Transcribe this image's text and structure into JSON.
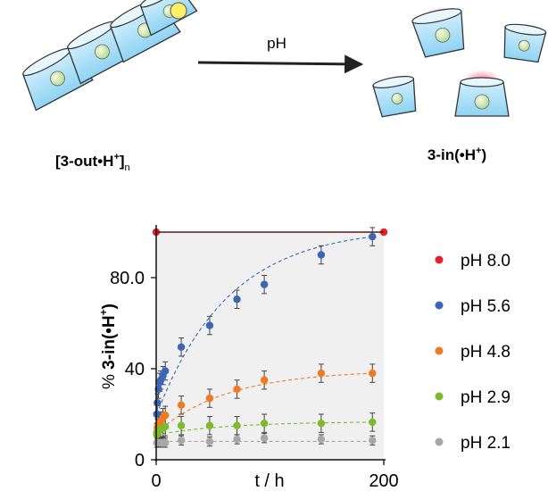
{
  "scheme": {
    "left_label_main": "[3-out•H",
    "left_label_sup": "+",
    "left_label_close": "]",
    "left_label_sub": "n",
    "arrow_label": "pH",
    "right_label_main": "3-in(•H",
    "right_label_sup": "+",
    "right_label_close": ")"
  },
  "chart_data": {
    "type": "scatter",
    "title": "",
    "xlabel": "t / h",
    "ylabel_prefix": "% ",
    "ylabel_bold": "3-in(•H",
    "ylabel_sup": "+",
    "ylabel_close": ")",
    "xlim": [
      0,
      200
    ],
    "ylim": [
      0,
      100
    ],
    "xticks": [
      0,
      200
    ],
    "yticks": [
      0,
      40,
      80
    ],
    "xtick_labels": [
      "0",
      "200"
    ],
    "ytick_labels": [
      "0",
      "40",
      "80.0"
    ],
    "grid": false,
    "legend_position": "right",
    "series": [
      {
        "name": "pH 8.0",
        "color": "#e8202a",
        "x": [
          0,
          200
        ],
        "y": [
          100,
          100
        ],
        "err": [
          0,
          0
        ],
        "fit": "flat"
      },
      {
        "name": "pH 5.6",
        "color": "#3a66b5",
        "x": [
          0.5,
          1,
          2,
          3,
          4,
          6,
          8,
          22,
          47,
          71,
          95,
          145,
          190
        ],
        "y": [
          20,
          25,
          31,
          34,
          35,
          37,
          39,
          49.5,
          59,
          70.5,
          77,
          90,
          98
        ],
        "err": [
          4,
          4,
          4,
          4,
          4,
          4,
          4,
          4,
          4,
          4,
          4,
          4,
          4
        ],
        "fit": "exp"
      },
      {
        "name": "pH 4.8",
        "color": "#f07a22",
        "x": [
          0.5,
          1,
          2,
          3,
          4,
          6,
          8,
          22,
          47,
          71,
          95,
          145,
          190
        ],
        "y": [
          12,
          14,
          15,
          16,
          17,
          18.5,
          19.5,
          24,
          27,
          31,
          35,
          38,
          38
        ],
        "err": [
          4,
          4,
          4,
          4,
          4,
          4,
          4,
          4,
          4,
          4,
          4,
          4,
          4
        ],
        "fit": "exp"
      },
      {
        "name": "pH 2.9",
        "color": "#7dbb2a",
        "x": [
          0.5,
          1,
          2,
          3,
          4,
          6,
          8,
          22,
          47,
          71,
          95,
          145,
          190
        ],
        "y": [
          11,
          12,
          12.5,
          13,
          13.5,
          14,
          14.5,
          15,
          15,
          15,
          16,
          16,
          16.5
        ],
        "err": [
          4,
          4,
          4,
          4,
          4,
          4,
          4,
          4,
          4,
          4,
          4,
          4,
          4
        ],
        "fit": "exp"
      },
      {
        "name": "pH 2.1",
        "color": "#a7a7a7",
        "x": [
          0.5,
          1,
          2,
          3,
          4,
          6,
          8,
          22,
          47,
          71,
          95,
          145,
          190
        ],
        "y": [
          7.5,
          7.5,
          7.5,
          7.5,
          7.5,
          7.5,
          7.5,
          8.5,
          8,
          9,
          9.5,
          9,
          8.5
        ],
        "err": [
          2,
          2,
          2,
          2,
          2,
          2,
          2,
          2,
          2,
          2,
          2,
          2,
          2
        ],
        "fit": "flat"
      }
    ]
  }
}
